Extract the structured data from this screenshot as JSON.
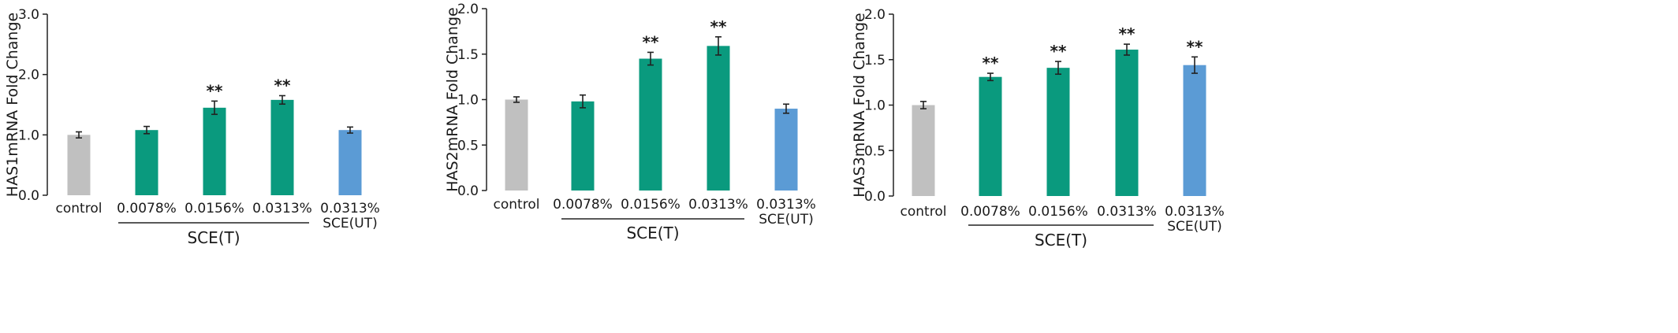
{
  "colors": {
    "control": "#c0c0c0",
    "treated": "#0a9a7e",
    "untreated": "#5b9bd5"
  },
  "chart_data": [
    {
      "type": "bar",
      "ylabel": "HAS1mRNA Fold Change",
      "ylim": [
        0,
        3.0
      ],
      "yticks": [
        "0.0",
        "1.0",
        "2.0",
        "3.0"
      ],
      "categories": [
        "control",
        "0.0078%",
        "0.0156%",
        "0.0313%",
        "0.0313%"
      ],
      "category_sub": [
        "",
        "",
        "",
        "",
        "SCE(UT)"
      ],
      "group_label": "SCE(T)",
      "values": [
        1.0,
        1.08,
        1.45,
        1.58,
        1.08
      ],
      "errors": [
        0.05,
        0.06,
        0.11,
        0.07,
        0.05
      ],
      "significance": [
        "",
        "",
        "**",
        "**",
        ""
      ],
      "bar_colors": [
        "control",
        "treated",
        "treated",
        "treated",
        "untreated"
      ]
    },
    {
      "type": "bar",
      "ylabel": "HAS2mRNA Fold Change",
      "ylim": [
        0,
        2.0
      ],
      "yticks": [
        "0.0",
        "0.5",
        "1.0",
        "1.5",
        "2.0"
      ],
      "categories": [
        "control",
        "0.0078%",
        "0.0156%",
        "0.0313%",
        "0.0313%"
      ],
      "category_sub": [
        "",
        "",
        "",
        "",
        "SCE(UT)"
      ],
      "group_label": "SCE(T)",
      "values": [
        1.0,
        0.98,
        1.45,
        1.59,
        0.9
      ],
      "errors": [
        0.03,
        0.07,
        0.07,
        0.1,
        0.05
      ],
      "significance": [
        "",
        "",
        "**",
        "**",
        ""
      ],
      "bar_colors": [
        "control",
        "treated",
        "treated",
        "treated",
        "untreated"
      ]
    },
    {
      "type": "bar",
      "ylabel": "HAS3mRNA Fold Change",
      "ylim": [
        0,
        2.0
      ],
      "yticks": [
        "0.0",
        "0.5",
        "1.0",
        "1.5",
        "2.0"
      ],
      "categories": [
        "control",
        "0.0078%",
        "0.0156%",
        "0.0313%",
        "0.0313%"
      ],
      "category_sub": [
        "",
        "",
        "",
        "",
        "SCE(UT)"
      ],
      "group_label": "SCE(T)",
      "values": [
        1.0,
        1.31,
        1.41,
        1.61,
        1.44
      ],
      "errors": [
        0.04,
        0.04,
        0.07,
        0.06,
        0.09
      ],
      "significance": [
        "",
        "**",
        "**",
        "**",
        "**"
      ],
      "bar_colors": [
        "control",
        "treated",
        "treated",
        "treated",
        "untreated"
      ]
    }
  ]
}
